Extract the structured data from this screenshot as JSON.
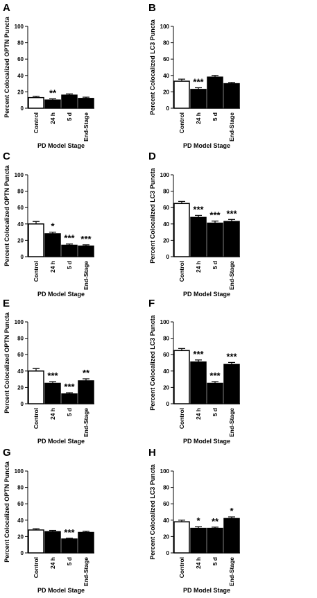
{
  "chart_data": [
    {
      "panel": "A",
      "type": "bar",
      "categories": [
        "Control",
        "24 h",
        "5 d",
        "End-Stage"
      ],
      "values": [
        13,
        10,
        16,
        12
      ],
      "errors": [
        1.5,
        1.5,
        1.5,
        1.5
      ],
      "significance": [
        "",
        "**",
        "",
        ""
      ],
      "ylabel": "Percent Colocalized OPTN Puncta",
      "xlabel": "PD Model Stage",
      "ylim": [
        0,
        100
      ],
      "yticks": [
        0,
        20,
        40,
        60,
        80,
        100
      ]
    },
    {
      "panel": "B",
      "type": "bar",
      "categories": [
        "Control",
        "24 h",
        "5 d",
        "End-Stage"
      ],
      "values": [
        33,
        23,
        38,
        30
      ],
      "errors": [
        2.5,
        2,
        2,
        1.5
      ],
      "significance": [
        "",
        "***",
        "",
        ""
      ],
      "ylabel": "Percent Colocalized LC3 Puncta",
      "xlabel": "PD Model Stage",
      "ylim": [
        0,
        100
      ],
      "yticks": [
        0,
        20,
        40,
        60,
        80,
        100
      ]
    },
    {
      "panel": "C",
      "type": "bar",
      "categories": [
        "Control",
        "24 h",
        "5 d",
        "End-Stage"
      ],
      "values": [
        40,
        28,
        14,
        13
      ],
      "errors": [
        3,
        2,
        1.5,
        1.5
      ],
      "significance": [
        "",
        "*",
        "***",
        "***"
      ],
      "ylabel": "Percent Colocalized OPTN Puncta",
      "xlabel": "PD Model Stage",
      "ylim": [
        0,
        100
      ],
      "yticks": [
        0,
        20,
        40,
        60,
        80,
        100
      ]
    },
    {
      "panel": "D",
      "type": "bar",
      "categories": [
        "Control",
        "24 h",
        "5 d",
        "End-Stage"
      ],
      "values": [
        65,
        48,
        41,
        43
      ],
      "errors": [
        2.5,
        2.5,
        2.5,
        2.5
      ],
      "significance": [
        "",
        "***",
        "***",
        "***"
      ],
      "ylabel": "Percent Colocalized LC3 Puncta",
      "xlabel": "PD Model Stage",
      "ylim": [
        0,
        100
      ],
      "yticks": [
        0,
        20,
        40,
        60,
        80,
        100
      ]
    },
    {
      "panel": "E",
      "type": "bar",
      "categories": [
        "Control",
        "24 h",
        "5 d",
        "End-Stage"
      ],
      "values": [
        40,
        25,
        12,
        28
      ],
      "errors": [
        3,
        2,
        1.5,
        2.5
      ],
      "significance": [
        "",
        "***",
        "***",
        "**"
      ],
      "ylabel": "Percent Colocalized OPTN Puncta",
      "xlabel": "PD Model Stage",
      "ylim": [
        0,
        100
      ],
      "yticks": [
        0,
        20,
        40,
        60,
        80,
        100
      ]
    },
    {
      "panel": "F",
      "type": "bar",
      "categories": [
        "Control",
        "24 h",
        "5 d",
        "End-Stage"
      ],
      "values": [
        65,
        51,
        25,
        48
      ],
      "errors": [
        2.5,
        2.5,
        2,
        2.5
      ],
      "significance": [
        "",
        "***",
        "***",
        "***"
      ],
      "ylabel": "Percent Colocalized LC3 Puncta",
      "xlabel": "PD Model Stage",
      "ylim": [
        0,
        100
      ],
      "yticks": [
        0,
        20,
        40,
        60,
        80,
        100
      ]
    },
    {
      "panel": "G",
      "type": "bar",
      "categories": [
        "Control",
        "24 h",
        "5 d",
        "End-Stage"
      ],
      "values": [
        28,
        26,
        17,
        25
      ],
      "errors": [
        1.5,
        1.5,
        1,
        1.5
      ],
      "significance": [
        "",
        "",
        "***",
        ""
      ],
      "ylabel": "Percent Colocalized OPTN Puncta",
      "xlabel": "PD Model Stage",
      "ylim": [
        0,
        100
      ],
      "yticks": [
        0,
        20,
        40,
        60,
        80,
        100
      ]
    },
    {
      "panel": "H",
      "type": "bar",
      "categories": [
        "Control",
        "24 h",
        "5 d",
        "End-Stage"
      ],
      "values": [
        38,
        30,
        30,
        42
      ],
      "errors": [
        2,
        2,
        1.5,
        2
      ],
      "significance": [
        "",
        "*",
        "**",
        "*"
      ],
      "ylabel": "Percent Colocalized LC3 Puncta",
      "xlabel": "PD Model Stage",
      "ylim": [
        0,
        100
      ],
      "yticks": [
        0,
        20,
        40,
        60,
        80,
        100
      ]
    }
  ],
  "colors": {
    "control_fill": "#ffffff",
    "treated_fill": "#000000",
    "stroke": "#000000"
  }
}
